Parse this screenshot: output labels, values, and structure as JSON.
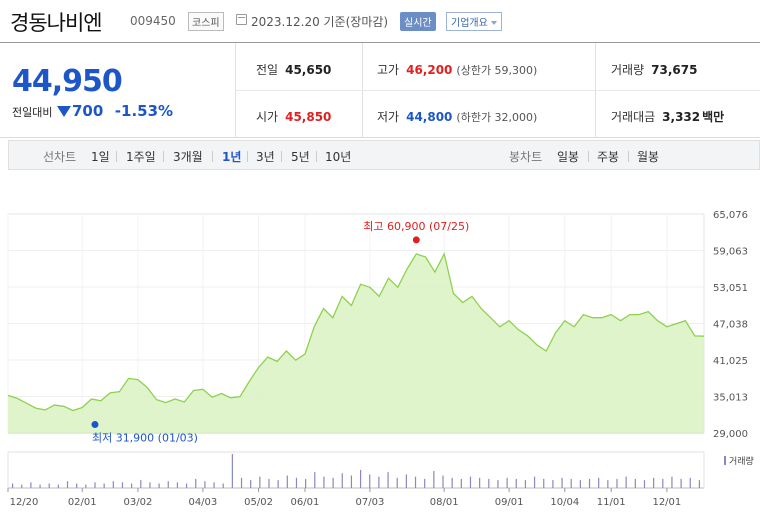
{
  "header": {
    "name": "경동나비엔",
    "code": "009450",
    "market": "코스피",
    "date": "2023.12.20 기준(장마감)",
    "realtime_label": "실시간",
    "company_info_label": "기업개요"
  },
  "quote": {
    "price": "44,950",
    "change_label": "전일대비",
    "change": "700",
    "change_pct": "-1.53%",
    "prev_label": "전일",
    "prev": "45,650",
    "high_label": "고가",
    "high": "46,200",
    "upper_limit": "(상한가 59,300)",
    "volume_label": "거래량",
    "volume": "73,675",
    "open_label": "시가",
    "open": "45,850",
    "low_label": "저가",
    "low": "44,800",
    "lower_limit": "(하한가 32,000)",
    "amount_label": "거래대금",
    "amount": "3,332",
    "amount_unit": "백만"
  },
  "period_bar": {
    "line_chart_label": "선차트",
    "periods": [
      "1일",
      "1주일",
      "3개월",
      "1년",
      "3년",
      "5년",
      "10년"
    ],
    "selected": "1년",
    "candle_label": "봉차트",
    "candles": [
      "일봉",
      "주봉",
      "월봉"
    ]
  },
  "colors": {
    "up": "#e02020",
    "down": "#1e56c8",
    "line": "#8fd14f",
    "fill": "#d9f2c2"
  },
  "chart_data": {
    "type": "area",
    "x_ticks": [
      "12/20",
      "02/01",
      "03/02",
      "04/03",
      "05/02",
      "06/01",
      "07/03",
      "08/01",
      "09/01",
      "10/04",
      "11/01",
      "12/01"
    ],
    "y_ticks": [
      "65,076",
      "59,063",
      "53,051",
      "47,038",
      "41,025",
      "35,013",
      "29,000"
    ],
    "ylim": [
      29000,
      65076
    ],
    "high_annotation": "최고 60,900 (07/25)",
    "low_annotation": "최저 31,900 (01/03)",
    "volume_label": "거래량",
    "price_series": [
      [
        "12/20",
        35200
      ],
      [
        "12/23",
        34700
      ],
      [
        "12/28",
        33900
      ],
      [
        "01/03",
        33100
      ],
      [
        "01/09",
        32800
      ],
      [
        "01/16",
        33600
      ],
      [
        "01/20",
        33400
      ],
      [
        "01/27",
        32700
      ],
      [
        "02/01",
        33200
      ],
      [
        "02/06",
        34600
      ],
      [
        "02/10",
        34300
      ],
      [
        "02/15",
        35600
      ],
      [
        "02/20",
        35800
      ],
      [
        "02/24",
        38000
      ],
      [
        "03/02",
        37800
      ],
      [
        "03/07",
        36500
      ],
      [
        "03/10",
        34500
      ],
      [
        "03/15",
        34000
      ],
      [
        "03/20",
        34600
      ],
      [
        "03/24",
        34100
      ],
      [
        "03/29",
        36000
      ],
      [
        "04/03",
        36200
      ],
      [
        "04/06",
        34900
      ],
      [
        "04/12",
        35500
      ],
      [
        "04/18",
        34800
      ],
      [
        "04/24",
        35000
      ],
      [
        "04/27",
        37500
      ],
      [
        "05/02",
        39800
      ],
      [
        "05/08",
        41500
      ],
      [
        "05/12",
        40800
      ],
      [
        "05/18",
        42500
      ],
      [
        "05/24",
        41000
      ],
      [
        "06/01",
        42000
      ],
      [
        "06/05",
        46500
      ],
      [
        "06/09",
        49500
      ],
      [
        "06/14",
        48000
      ],
      [
        "06/19",
        51500
      ],
      [
        "06/23",
        50000
      ],
      [
        "06/28",
        53500
      ],
      [
        "07/03",
        53000
      ],
      [
        "07/07",
        51500
      ],
      [
        "07/11",
        54500
      ],
      [
        "07/14",
        53000
      ],
      [
        "07/18",
        56000
      ],
      [
        "07/21",
        58500
      ],
      [
        "07/25",
        58000
      ],
      [
        "07/28",
        55500
      ],
      [
        "08/01",
        58500
      ],
      [
        "08/04",
        52000
      ],
      [
        "08/09",
        50500
      ],
      [
        "08/14",
        51500
      ],
      [
        "08/18",
        49500
      ],
      [
        "08/24",
        48000
      ],
      [
        "08/29",
        46500
      ],
      [
        "09/01",
        47500
      ],
      [
        "09/06",
        46000
      ],
      [
        "09/12",
        45000
      ],
      [
        "09/15",
        43500
      ],
      [
        "09/20",
        42500
      ],
      [
        "09/25",
        45500
      ],
      [
        "10/04",
        47500
      ],
      [
        "10/10",
        46500
      ],
      [
        "10/16",
        48500
      ],
      [
        "10/20",
        48000
      ],
      [
        "10/25",
        48000
      ],
      [
        "11/01",
        48500
      ],
      [
        "11/06",
        47500
      ],
      [
        "11/10",
        48500
      ],
      [
        "11/16",
        48500
      ],
      [
        "11/21",
        49000
      ],
      [
        "11/27",
        47500
      ],
      [
        "12/01",
        46500
      ],
      [
        "12/06",
        47000
      ],
      [
        "12/11",
        47500
      ],
      [
        "12/15",
        45000
      ],
      [
        "12/20",
        44950
      ]
    ],
    "volume_series": [
      4,
      3,
      5,
      3,
      4,
      3,
      6,
      4,
      3,
      5,
      4,
      6,
      5,
      4,
      7,
      5,
      4,
      6,
      5,
      4,
      8,
      6,
      5,
      4,
      30,
      9,
      7,
      10,
      8,
      7,
      11,
      9,
      8,
      14,
      10,
      9,
      13,
      11,
      16,
      12,
      10,
      14,
      9,
      12,
      10,
      8,
      15,
      11,
      9,
      8,
      10,
      9,
      8,
      7,
      9,
      8,
      7,
      10,
      8,
      7,
      9,
      8,
      7,
      8,
      9,
      7,
      8,
      10,
      8,
      7,
      9,
      8,
      10,
      8,
      9,
      7
    ]
  }
}
